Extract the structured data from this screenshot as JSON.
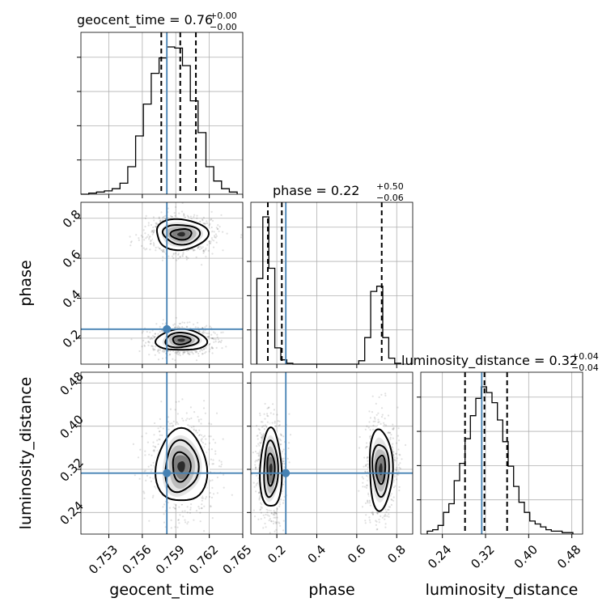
{
  "chart_data": {
    "type": "corner",
    "parameters": [
      "geocent_time",
      "phase",
      "luminosity_distance"
    ],
    "truths": {
      "geocent_time": 0.7582,
      "phase": 0.245,
      "luminosity_distance": 0.313
    },
    "axis_labels": [
      "geocent_time",
      "phase",
      "luminosity_distance"
    ],
    "tick_labels": {
      "geocent_time": [
        "0.753",
        "0.756",
        "0.759",
        "0.762",
        "0.765"
      ],
      "phase_x": [
        "0.2",
        "0.4",
        "0.6",
        "0.8"
      ],
      "phase_y": [
        "0.2",
        "0.4",
        "0.6",
        "0.8"
      ],
      "luminosity_distance_x": [
        "0.24",
        "0.32",
        "0.40",
        "0.48"
      ],
      "luminosity_distance_y": [
        "0.24",
        "0.32",
        "0.40",
        "0.48"
      ]
    },
    "marginals": [
      {
        "param": "geocent_time",
        "title_prefix": "geocent_time = 0.76",
        "title_plus": "+0.00",
        "title_minus": "−0.00",
        "range": [
          0.7505,
          0.765
        ],
        "quantiles": [
          0.7577,
          0.7594,
          0.7608
        ],
        "bins": [
          0.7505,
          0.7512,
          0.7519,
          0.7526,
          0.7533,
          0.754,
          0.7547,
          0.7554,
          0.7561,
          0.7568,
          0.7575,
          0.7582,
          0.7589,
          0.7596,
          0.7603,
          0.761,
          0.7617,
          0.7624,
          0.7631,
          0.7638,
          0.7645
        ],
        "counts": [
          0,
          1,
          2,
          3,
          5,
          10,
          25,
          53,
          82,
          110,
          124,
          134,
          133,
          117,
          85,
          56,
          25,
          12,
          5,
          2
        ]
      },
      {
        "param": "phase",
        "title_prefix": "phase = 0.22",
        "title_plus": "+0.50",
        "title_minus": "−0.06",
        "range": [
          0.07,
          0.88
        ],
        "quantiles": [
          0.155,
          0.225,
          0.725
        ],
        "bins": [
          0.1,
          0.13,
          0.16,
          0.19,
          0.22,
          0.25,
          0.28,
          0.31,
          0.34,
          0.37,
          0.4,
          0.43,
          0.46,
          0.49,
          0.52,
          0.55,
          0.58,
          0.61,
          0.64,
          0.67,
          0.7,
          0.73,
          0.76,
          0.79,
          0.82
        ],
        "counts": [
          100,
          172,
          112,
          19,
          5,
          1,
          0,
          0,
          0,
          0,
          0,
          0,
          0,
          0,
          0,
          0,
          0,
          4,
          31,
          85,
          91,
          31,
          7,
          1
        ]
      },
      {
        "param": "luminosity_distance",
        "title_prefix": "luminosity_distance = 0.32",
        "title_plus": "+0.04",
        "title_minus": "−0.04",
        "range": [
          0.2,
          0.5
        ],
        "quantiles": [
          0.282,
          0.318,
          0.36
        ],
        "bins": [
          0.212,
          0.222,
          0.232,
          0.242,
          0.252,
          0.262,
          0.272,
          0.282,
          0.292,
          0.302,
          0.312,
          0.322,
          0.332,
          0.342,
          0.352,
          0.362,
          0.372,
          0.382,
          0.392,
          0.402,
          0.412,
          0.422,
          0.432,
          0.442,
          0.452,
          0.462,
          0.472,
          0.482
        ],
        "counts": [
          2,
          3,
          6,
          15,
          21,
          37,
          49,
          66,
          82,
          94,
          102,
          98,
          91,
          79,
          64,
          47,
          33,
          22,
          15,
          9,
          7,
          5,
          3,
          2,
          2,
          1,
          1
        ]
      }
    ],
    "joint_2d": [
      {
        "x": "geocent_time",
        "y": "phase",
        "modes": [
          {
            "cx": 0.7595,
            "cy": 0.19,
            "sx": 0.0011,
            "sy": 0.027
          },
          {
            "cx": 0.7595,
            "cy": 0.72,
            "sx": 0.0012,
            "sy": 0.037
          }
        ]
      },
      {
        "x": "geocent_time",
        "y": "luminosity_distance",
        "modes": [
          {
            "cx": 0.7595,
            "cy": 0.325,
            "sx": 0.0011,
            "sy": 0.035
          }
        ]
      },
      {
        "x": "phase",
        "y": "luminosity_distance",
        "modes": [
          {
            "cx": 0.17,
            "cy": 0.32,
            "sx": 0.026,
            "sy": 0.038
          },
          {
            "cx": 0.72,
            "cy": 0.32,
            "sx": 0.03,
            "sy": 0.036
          }
        ]
      }
    ],
    "grid": true,
    "truth_color": "#4682b4",
    "hist_color": "#000000"
  }
}
